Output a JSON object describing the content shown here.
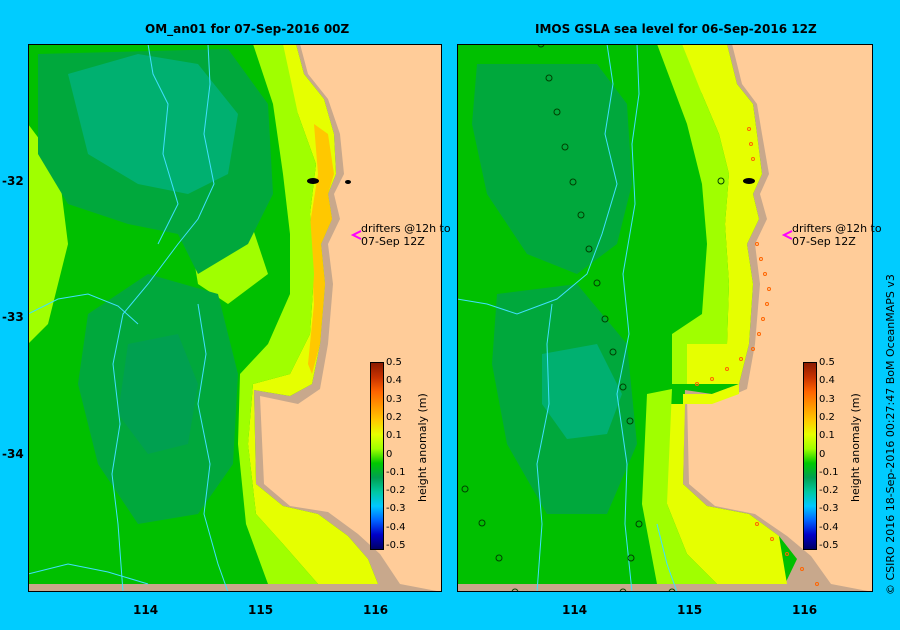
{
  "panels": [
    {
      "title": "OM_an01  for 07-Sep-2016 00Z",
      "annotation": [
        "drifters @12h to",
        "07-Sep 12Z"
      ]
    },
    {
      "title": "IMOS GSLA sea level  for 06-Sep-2016 12Z",
      "annotation": [
        "drifters @12h to",
        "07-Sep 12Z"
      ]
    }
  ],
  "axes": {
    "lat_ticks": [
      "-32",
      "-33",
      "-34"
    ],
    "lon_ticks": [
      "114",
      "115",
      "116"
    ]
  },
  "colorbar": {
    "label": "height anomaly (m)",
    "ticks": [
      "0.5",
      "0.4",
      "0.3",
      "0.2",
      "0.1",
      "0",
      "-0.1",
      "-0.2",
      "-0.3",
      "-0.4",
      "-0.5"
    ],
    "colors": [
      "#8b1a00",
      "#c83200",
      "#ff6400",
      "#ff9600",
      "#ffc800",
      "#e6ff00",
      "#a0ff00",
      "#00c800",
      "#00a050",
      "#00c8a0",
      "#00c8ff",
      "#0064ff",
      "#0000c8",
      "#000064"
    ]
  },
  "credit": "© CSIRO 2016   18-Sep-2016 00:27:47 BoM OceanMAPS v3",
  "colors": {
    "background": "#00ccff",
    "land": "#ffcc99",
    "shelf": "#c8a88c",
    "drifter_arrow": "#ff00ff",
    "track": "#40e0ff"
  }
}
